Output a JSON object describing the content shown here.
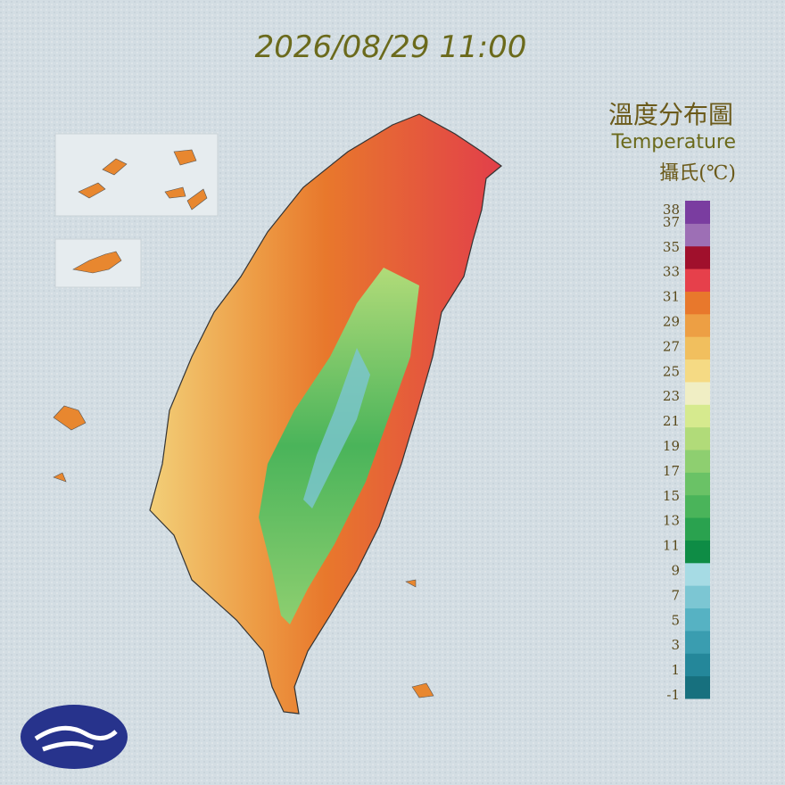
{
  "title": "2026/08/29 11:00",
  "legend": {
    "title": "溫度分布圖",
    "subtitle": "Temperature",
    "unit": "攝氏(℃)",
    "ticks": [
      38,
      37,
      35,
      33,
      31,
      29,
      27,
      25,
      23,
      21,
      19,
      17,
      15,
      13,
      11,
      9,
      7,
      5,
      3,
      1,
      -1
    ],
    "colors": [
      "#17707e",
      "#24879a",
      "#3a9db0",
      "#56b2c3",
      "#7cc6d3",
      "#a6dbe4",
      "#0e8c45",
      "#2aa24f",
      "#4ab45a",
      "#6ac266",
      "#8ecf70",
      "#b1db79",
      "#d6ea8e",
      "#f0eec4",
      "#f5da84",
      "#f1bf5e",
      "#ed9f44",
      "#e8782c",
      "#e6404b",
      "#a0102c",
      "#9d6fb5",
      "#7a3da0"
    ]
  }
}
